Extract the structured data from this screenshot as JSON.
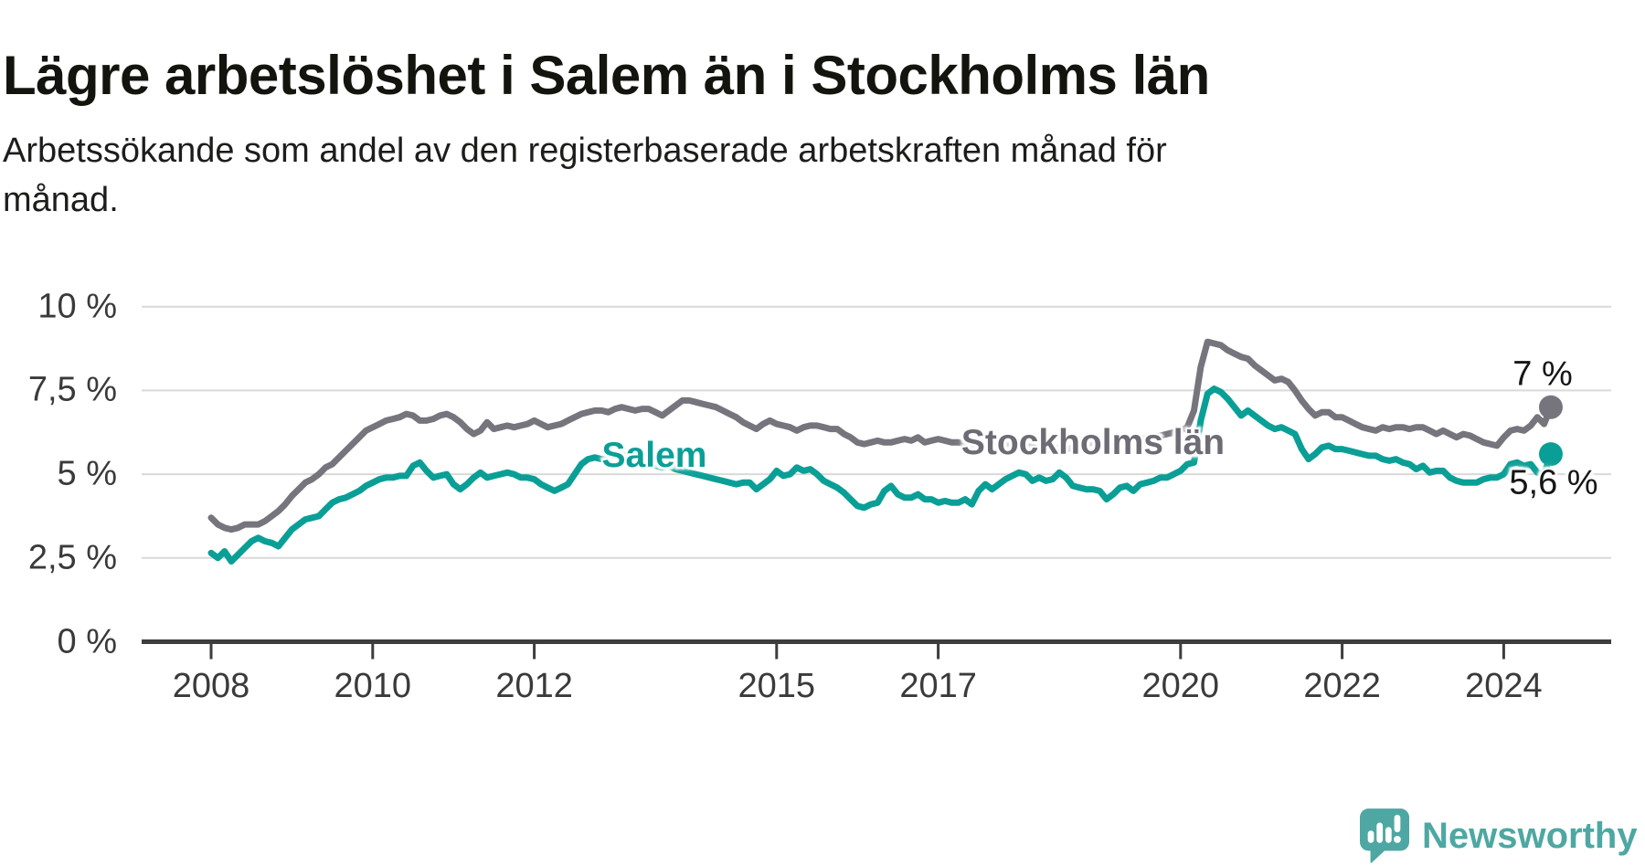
{
  "header": {
    "title": "Lägre arbetslöshet i Salem än i Stockholms län",
    "subtitle_lines": [
      "Arbetssökande som andel av den registerbaserade arbetskraften månad för",
      "månad."
    ]
  },
  "chart_data": {
    "type": "line",
    "title": "Lägre arbetslöshet i Salem än i Stockholms län",
    "xlabel": "",
    "ylabel": "",
    "grid": true,
    "legend_position": "inline-on-lines",
    "grid_color": "#d9d9d9",
    "axis_color": "#3d3d3d",
    "tick_label_color": "#3a3a3a",
    "ylim": [
      0,
      10.5
    ],
    "x_start_year": 2008,
    "points_per_year": 12,
    "x_end_label_months": "Jan 2008 – Aug 2024 (monthly)",
    "y_ticks": [
      {
        "value": 0,
        "label": "0 %"
      },
      {
        "value": 2.5,
        "label": "2,5 %"
      },
      {
        "value": 5,
        "label": "5 %"
      },
      {
        "value": 7.5,
        "label": "7,5 %"
      },
      {
        "value": 10,
        "label": "10 %"
      }
    ],
    "x_ticks": [
      {
        "year": 2008,
        "label": "2008"
      },
      {
        "year": 2010,
        "label": "2010"
      },
      {
        "year": 2012,
        "label": "2012"
      },
      {
        "year": 2015,
        "label": "2015"
      },
      {
        "year": 2017,
        "label": "2017"
      },
      {
        "year": 2020,
        "label": "2020"
      },
      {
        "year": 2022,
        "label": "2022"
      },
      {
        "year": 2024,
        "label": "2024"
      }
    ],
    "series": [
      {
        "name": "Stockholms län",
        "color": "#76757d",
        "label_color": "#6d6c75",
        "end_label": "7 %",
        "end_value": 7.0,
        "values": [
          3.7,
          3.5,
          3.4,
          3.35,
          3.4,
          3.5,
          3.5,
          3.5,
          3.6,
          3.75,
          3.9,
          4.1,
          4.35,
          4.55,
          4.75,
          4.85,
          5.0,
          5.2,
          5.3,
          5.5,
          5.7,
          5.9,
          6.1,
          6.3,
          6.4,
          6.5,
          6.6,
          6.65,
          6.7,
          6.8,
          6.75,
          6.6,
          6.6,
          6.65,
          6.75,
          6.8,
          6.7,
          6.55,
          6.35,
          6.2,
          6.3,
          6.55,
          6.35,
          6.4,
          6.45,
          6.4,
          6.45,
          6.5,
          6.6,
          6.5,
          6.4,
          6.45,
          6.5,
          6.6,
          6.7,
          6.8,
          6.85,
          6.9,
          6.9,
          6.85,
          6.95,
          7.0,
          6.95,
          6.9,
          6.95,
          6.95,
          6.85,
          6.75,
          6.9,
          7.05,
          7.2,
          7.2,
          7.15,
          7.1,
          7.05,
          7.0,
          6.9,
          6.8,
          6.7,
          6.55,
          6.45,
          6.35,
          6.5,
          6.6,
          6.5,
          6.45,
          6.4,
          6.3,
          6.4,
          6.45,
          6.45,
          6.4,
          6.35,
          6.35,
          6.2,
          6.1,
          5.95,
          5.9,
          5.95,
          6.0,
          5.95,
          5.95,
          6.0,
          6.05,
          6.0,
          6.1,
          5.95,
          6.0,
          6.05,
          6.0,
          5.95,
          5.95,
          5.9,
          5.85,
          5.9,
          5.85,
          5.8,
          5.85,
          5.85,
          5.9,
          5.9,
          5.85,
          5.8,
          5.75,
          5.7,
          5.75,
          5.8,
          5.75,
          5.8,
          5.85,
          5.9,
          5.95,
          5.95,
          5.9,
          5.9,
          5.95,
          6.0,
          6.0,
          6.05,
          6.1,
          6.1,
          6.15,
          6.2,
          6.25,
          6.3,
          6.4,
          6.9,
          8.2,
          8.95,
          8.9,
          8.85,
          8.7,
          8.6,
          8.5,
          8.45,
          8.25,
          8.1,
          7.95,
          7.8,
          7.85,
          7.75,
          7.5,
          7.2,
          6.95,
          6.75,
          6.85,
          6.85,
          6.7,
          6.7,
          6.6,
          6.5,
          6.4,
          6.35,
          6.3,
          6.4,
          6.35,
          6.4,
          6.4,
          6.35,
          6.4,
          6.4,
          6.3,
          6.2,
          6.3,
          6.2,
          6.1,
          6.2,
          6.15,
          6.05,
          5.95,
          5.9,
          5.85,
          6.1,
          6.3,
          6.35,
          6.3,
          6.45,
          6.7,
          6.5,
          7.0
        ]
      },
      {
        "name": "Salem",
        "color": "#0a9f96",
        "label_color": "#0a9f96",
        "end_label": "5,6 %",
        "end_value": 5.6,
        "values": [
          2.65,
          2.5,
          2.7,
          2.4,
          2.6,
          2.8,
          3.0,
          3.1,
          3.0,
          2.95,
          2.85,
          3.1,
          3.35,
          3.5,
          3.65,
          3.7,
          3.75,
          3.95,
          4.15,
          4.25,
          4.3,
          4.4,
          4.5,
          4.65,
          4.75,
          4.85,
          4.9,
          4.9,
          4.95,
          4.95,
          5.25,
          5.35,
          5.1,
          4.9,
          4.95,
          5.0,
          4.7,
          4.55,
          4.7,
          4.9,
          5.05,
          4.9,
          4.95,
          5.0,
          5.05,
          5.0,
          4.9,
          4.9,
          4.85,
          4.7,
          4.6,
          4.5,
          4.6,
          4.7,
          5.0,
          5.3,
          5.45,
          5.5,
          5.45,
          5.5,
          5.55,
          5.6,
          5.5,
          5.45,
          5.4,
          5.35,
          5.25,
          5.2,
          5.25,
          5.15,
          5.1,
          5.05,
          5.0,
          4.95,
          4.9,
          4.85,
          4.8,
          4.75,
          4.7,
          4.75,
          4.75,
          4.55,
          4.7,
          4.85,
          5.1,
          4.95,
          5.0,
          5.2,
          5.1,
          5.15,
          5.0,
          4.8,
          4.7,
          4.6,
          4.45,
          4.25,
          4.05,
          4.0,
          4.1,
          4.15,
          4.5,
          4.65,
          4.4,
          4.3,
          4.3,
          4.4,
          4.25,
          4.25,
          4.15,
          4.2,
          4.15,
          4.15,
          4.25,
          4.1,
          4.5,
          4.7,
          4.55,
          4.7,
          4.85,
          4.95,
          5.05,
          5.0,
          4.8,
          4.9,
          4.8,
          4.85,
          5.05,
          4.9,
          4.65,
          4.6,
          4.55,
          4.55,
          4.5,
          4.25,
          4.4,
          4.6,
          4.65,
          4.5,
          4.7,
          4.75,
          4.8,
          4.9,
          4.9,
          5.0,
          5.1,
          5.3,
          5.35,
          6.6,
          7.4,
          7.55,
          7.45,
          7.25,
          7.0,
          6.75,
          6.9,
          6.75,
          6.6,
          6.45,
          6.35,
          6.4,
          6.3,
          6.2,
          5.75,
          5.45,
          5.6,
          5.8,
          5.85,
          5.75,
          5.75,
          5.7,
          5.65,
          5.6,
          5.55,
          5.55,
          5.45,
          5.4,
          5.45,
          5.35,
          5.3,
          5.15,
          5.25,
          5.05,
          5.1,
          5.1,
          4.9,
          4.8,
          4.75,
          4.75,
          4.75,
          4.85,
          4.9,
          4.9,
          5.0,
          5.3,
          5.35,
          5.25,
          5.3,
          5.05,
          5.0,
          5.6
        ]
      }
    ]
  },
  "logo": {
    "text": "Newsworthy",
    "color": "#4ea7a2"
  }
}
